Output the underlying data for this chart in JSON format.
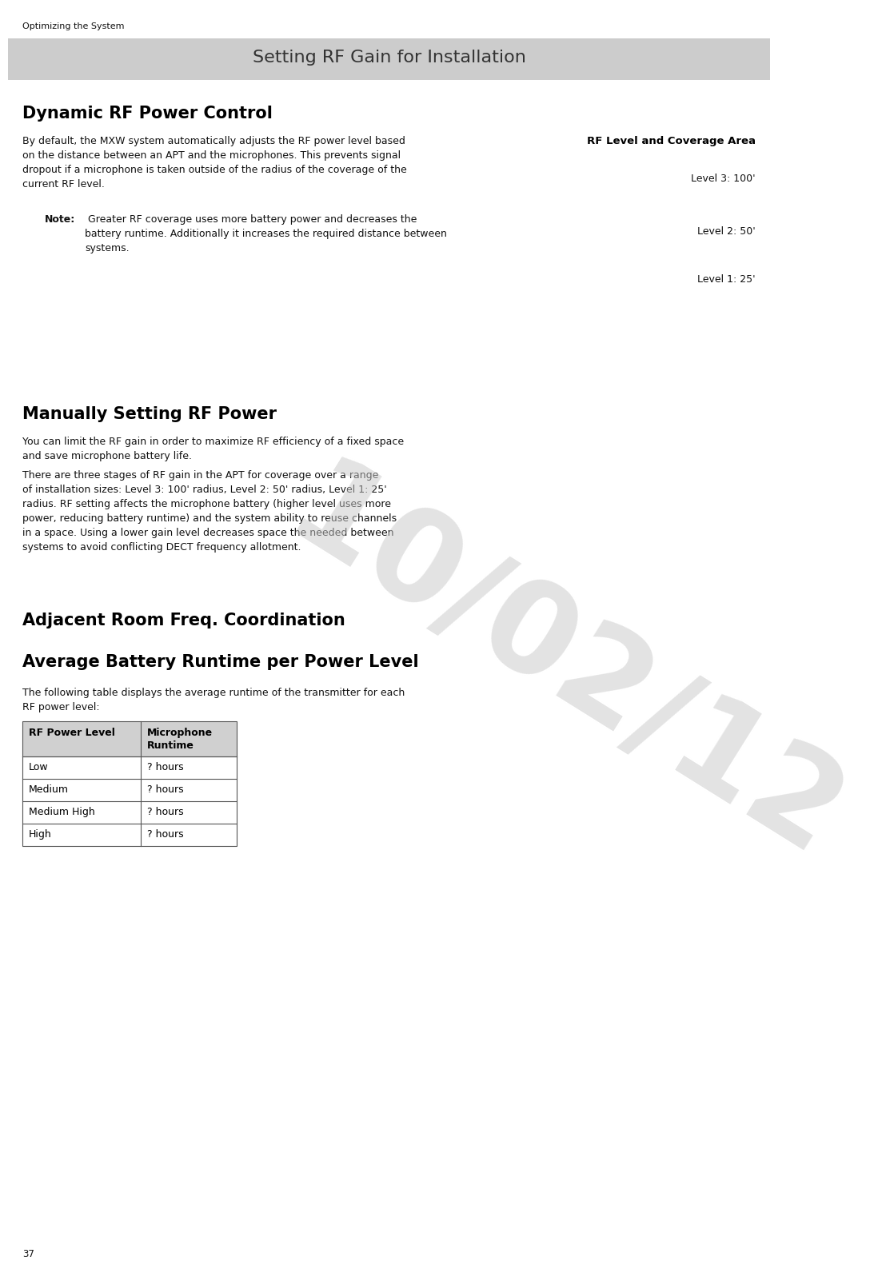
{
  "page_bg": "#ffffff",
  "header_bg": "#cccccc",
  "header_text": "Setting RF Gain for Installation",
  "header_text_color": "#333333",
  "top_label": "Optimizing the System",
  "page_number": "37",
  "date_watermark": "10/02/12",
  "section1_title": "Dynamic RF Power Control",
  "section1_body": "By default, the MXW system automatically adjusts the RF power level based\non the distance between an APT and the microphones. This prevents signal\ndropout if a microphone is taken outside of the radius of the coverage of the\ncurrent RF level.",
  "note_label": "Note:",
  "note_body": " Greater RF coverage uses more battery power and decreases the\nbattery runtime. Additionally it increases the required distance between\nsystems.",
  "rf_area_title": "RF Level and Coverage Area",
  "rf_levels": [
    "Level 3: 100'",
    "Level 2: 50'",
    "Level 1: 25'"
  ],
  "section2_title": "Manually Setting RF Power",
  "section2_body1": "You can limit the RF gain in order to maximize RF efficiency of a fixed space\nand save microphone battery life.",
  "section2_body2": "There are three stages of RF gain in the APT for coverage over a range\nof installation sizes: Level 3: 100' radius, Level 2: 50' radius, Level 1: 25'\nradius. RF setting affects the microphone battery (higher level uses more\npower, reducing battery runtime) and the system ability to reuse channels\nin a space. Using a lower gain level decreases space the needed between\nsystems to avoid conflicting DECT frequency allotment.",
  "section3_title": "Adjacent Room Freq. Coordination",
  "section4_title": "Average Battery Runtime per Power Level",
  "section4_body": "The following table displays the average runtime of the transmitter for each\nRF power level:",
  "table_col1_header": "RF Power Level",
  "table_col2_header": "Microphone\nRuntime",
  "table_rows": [
    [
      "Low",
      "? hours"
    ],
    [
      "Medium",
      "? hours"
    ],
    [
      "Medium High",
      "? hours"
    ],
    [
      "High",
      "? hours"
    ]
  ],
  "table_header_bg": "#d0d0d0",
  "table_border_color": "#555555",
  "title_color": "#000000",
  "body_color": "#111111",
  "watermark_color": "#c8c8c8",
  "watermark_alpha": 0.5
}
